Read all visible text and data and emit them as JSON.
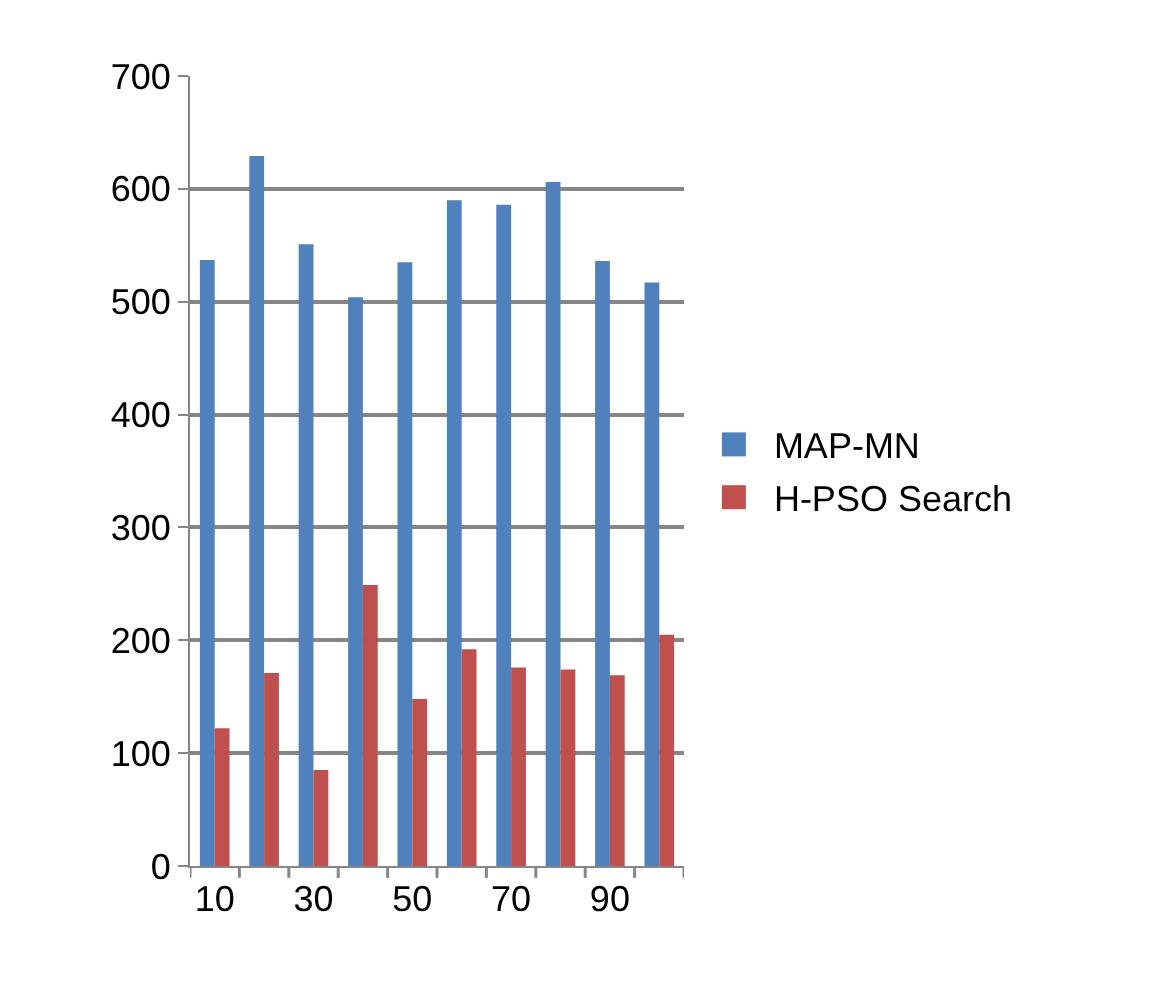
{
  "chart_data": {
    "type": "bar",
    "categories": [
      "10",
      null,
      "30",
      null,
      "50",
      null,
      "70",
      null,
      "90",
      null
    ],
    "series": [
      {
        "name": "MAP-MN",
        "color": "#4f81bd",
        "values": [
          537,
          629,
          551,
          504,
          535,
          590,
          586,
          606,
          536,
          517
        ]
      },
      {
        "name": "H-PSO Search",
        "color": "#c0504d",
        "values": [
          122,
          171,
          85,
          249,
          148,
          192,
          176,
          174,
          169,
          205
        ]
      }
    ],
    "ylim": [
      0,
      700
    ],
    "yticks": [
      0,
      100,
      200,
      300,
      400,
      500,
      600,
      700
    ],
    "grid": "y",
    "legend": "right"
  }
}
